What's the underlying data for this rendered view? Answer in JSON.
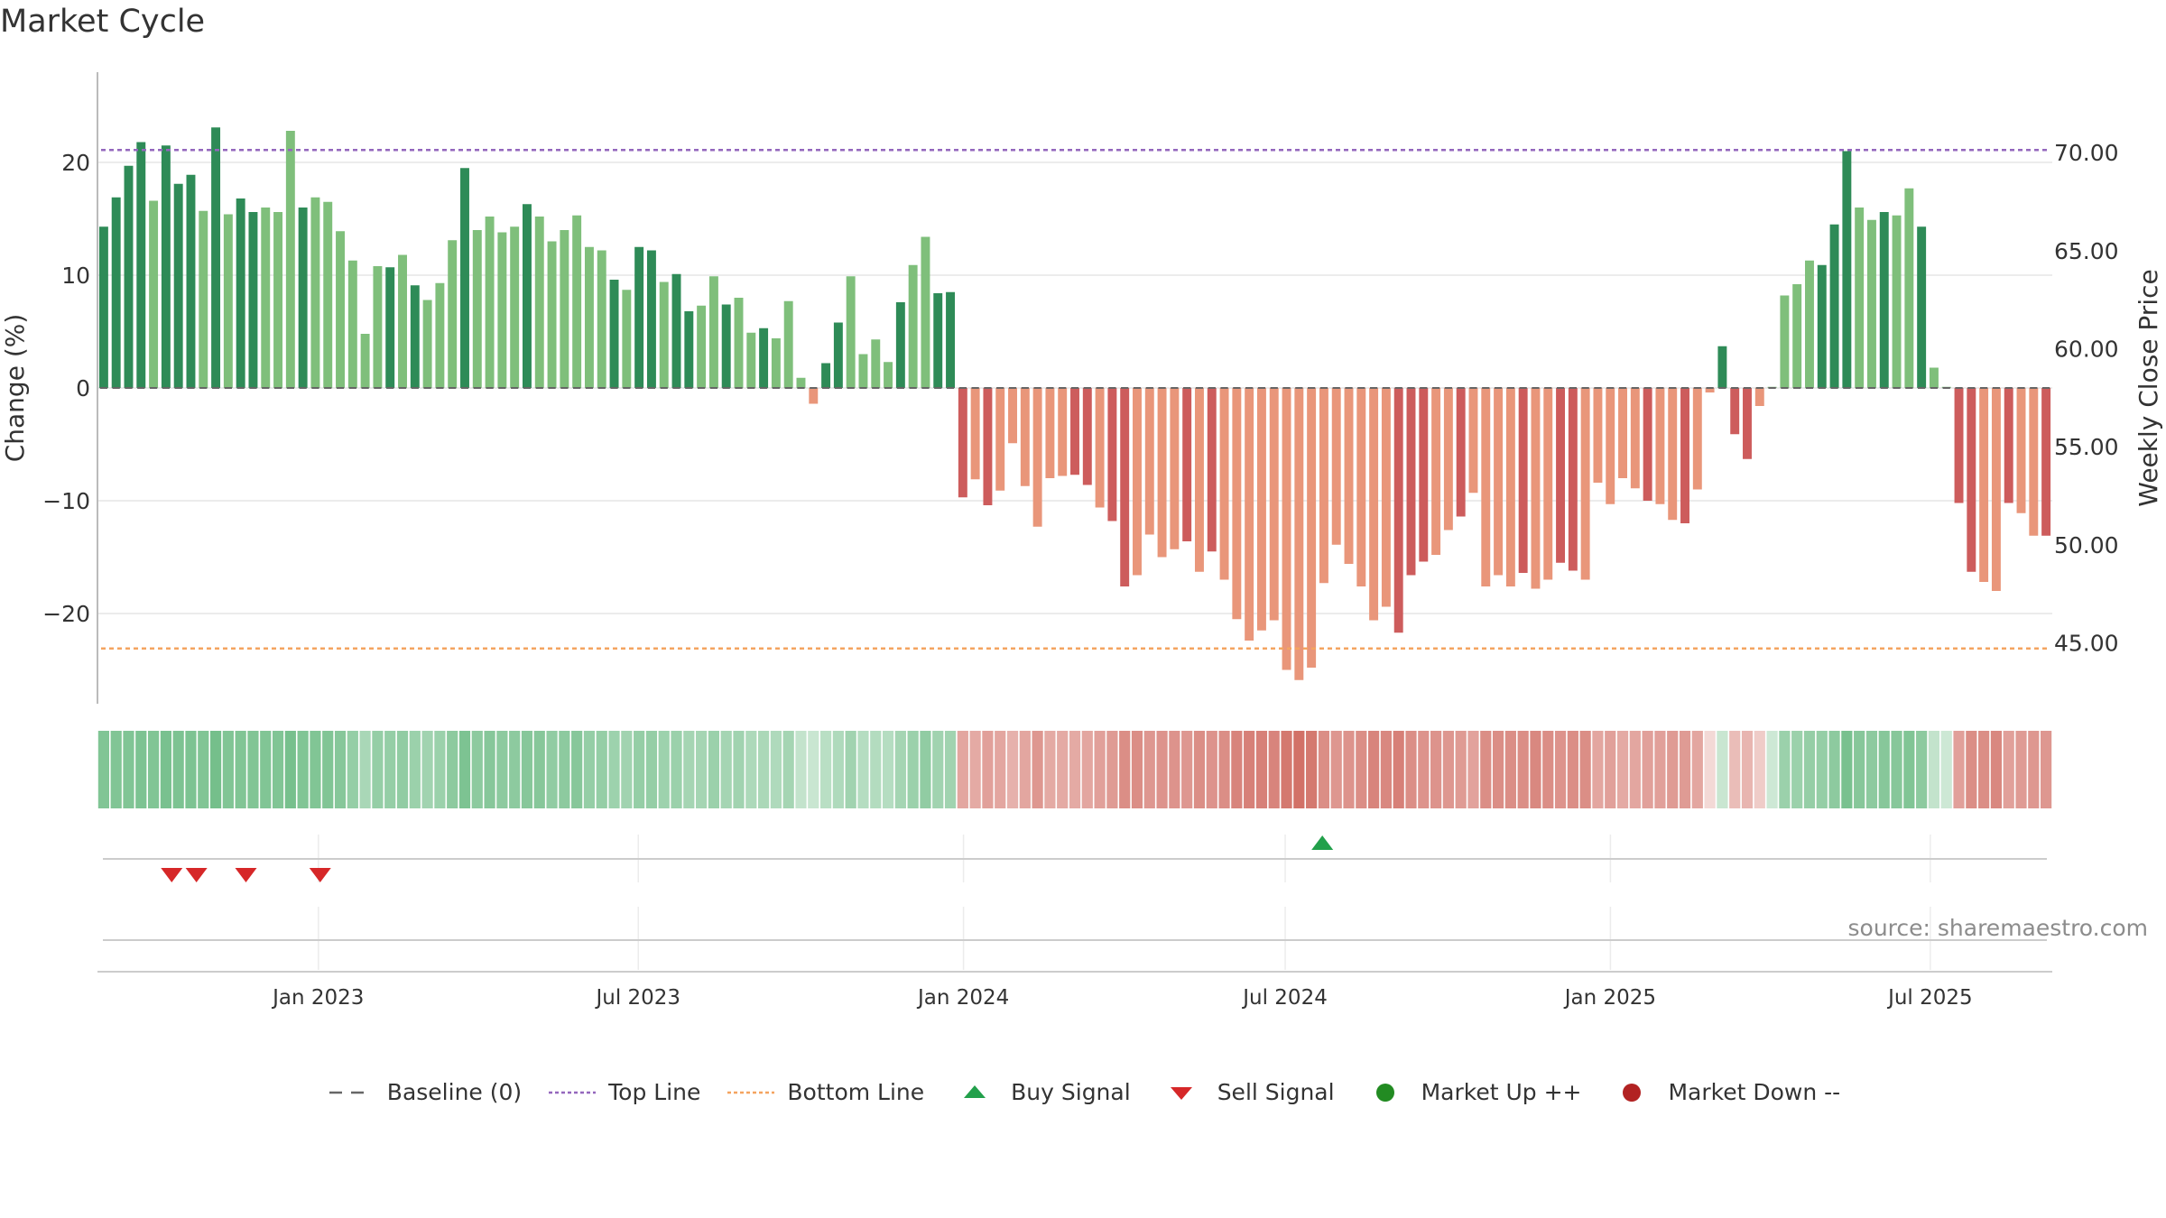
{
  "title": "Market Cycle",
  "source": "source: sharemaestro.com",
  "colors": {
    "dark_green": "#2e8b57",
    "light_green": "#7fbf7b",
    "dark_red": "#cd5c5c",
    "light_red": "#e9967a",
    "top_line": "#9467bd",
    "bottom_line": "#f4a460",
    "buy": "#22a04b",
    "sell": "#d62728",
    "market_up": "#228b22",
    "market_down": "#b22222",
    "baseline": "#666666"
  },
  "legend": [
    {
      "key": "baseline",
      "label": "Baseline (0)",
      "icon": "dash-line-icon"
    },
    {
      "key": "top",
      "label": "Top Line",
      "icon": "dotted-line-icon"
    },
    {
      "key": "bottom",
      "label": "Bottom Line",
      "icon": "dotted-line-icon"
    },
    {
      "key": "buy",
      "label": "Buy Signal",
      "icon": "triangle-up-icon"
    },
    {
      "key": "sell",
      "label": "Sell Signal",
      "icon": "triangle-down-icon"
    },
    {
      "key": "up",
      "label": "Market Up ++",
      "icon": "circle-icon"
    },
    {
      "key": "down",
      "label": "Market Down --",
      "icon": "circle-icon"
    }
  ],
  "chart_data": {
    "type": "bar",
    "title": "Market Cycle",
    "ylabel": "Change (%)",
    "y2label": "Weekly Close Price",
    "ylim": [
      -28,
      28
    ],
    "y2lim": [
      41.9,
      74.1
    ],
    "yticks": [
      20,
      10,
      0,
      -10,
      -20
    ],
    "ytick_labels": [
      "20",
      "10",
      "0",
      "−10",
      "−20"
    ],
    "y2ticks": [
      70,
      65,
      60,
      55,
      50,
      45
    ],
    "y2tick_labels": [
      "70.00",
      "65.00",
      "60.00",
      "55.00",
      "50.00",
      "45.00"
    ],
    "x_start": "2022-08-29",
    "x_end": "2025-09-08",
    "xticks": [
      "2023-01-01",
      "2023-07-01",
      "2024-01-01",
      "2024-07-01",
      "2025-01-01",
      "2025-07-01"
    ],
    "xtick_labels": [
      "Jan 2023",
      "Jul 2023",
      "Jan 2024",
      "Jul 2024",
      "Jan 2025",
      "Jul 2025"
    ],
    "top_line": 21.1,
    "bottom_line": -23.1,
    "grid": true,
    "legend_position": "bottom-center",
    "series": [
      {
        "values": [
          14.3,
          16.9,
          19.7,
          21.8,
          16.6,
          21.5,
          18.1,
          18.9,
          15.7,
          23.1,
          15.4,
          16.8,
          15.6,
          16.0,
          15.6,
          22.8,
          16.0,
          16.9,
          16.5,
          13.9,
          11.3,
          4.8,
          10.8,
          10.7,
          11.8,
          9.1,
          7.8,
          9.3,
          13.1,
          19.5,
          14.0,
          15.2,
          13.8,
          14.3,
          16.3,
          15.2,
          13.0,
          14.0,
          15.3,
          12.5,
          12.2,
          9.6,
          8.7,
          12.5,
          12.2,
          9.4,
          10.1,
          6.8,
          7.3,
          9.9,
          7.4,
          8.0,
          4.9,
          5.3,
          4.4,
          7.7,
          0.9,
          -1.4,
          2.2,
          5.8,
          9.9,
          3.0,
          4.3,
          2.3,
          7.6,
          10.9,
          13.4,
          8.4,
          8.5,
          -9.7,
          -8.1,
          -10.4,
          -9.1,
          -4.9,
          -8.7,
          -12.3,
          -8.0,
          -7.8,
          -7.7,
          -8.6,
          -10.6,
          -11.8,
          -17.6,
          -16.6,
          -13.0,
          -15.0,
          -14.3,
          -13.6,
          -16.3,
          -14.5,
          -17.0,
          -20.5,
          -22.4,
          -21.5,
          -20.6,
          -25.0,
          -25.9,
          -24.8,
          -17.3,
          -13.9,
          -15.6,
          -17.6,
          -20.6,
          -19.4,
          -21.7,
          -16.6,
          -15.4,
          -14.8,
          -12.6,
          -11.4,
          -9.3,
          -17.6,
          -16.6,
          -17.6,
          -16.4,
          -17.8,
          -17.0,
          -15.5,
          -16.2,
          -17.0,
          -8.4,
          -10.3,
          -8.0,
          -8.9,
          -10.0,
          -10.3,
          -11.7,
          -12.0,
          -9.0,
          -0.4,
          3.7,
          -4.1,
          -6.3,
          -1.6,
          0.1,
          8.2,
          9.2,
          11.3,
          10.9,
          14.5,
          21.0,
          16.0,
          14.9,
          15.6,
          15.3,
          17.7,
          14.3,
          1.8,
          0.1,
          -10.2,
          -16.3,
          -17.2,
          -18.0,
          -10.2,
          -11.1,
          -13.1,
          -13.1
        ],
        "shades": "ddddldddldlddllldlllllldldllldlllldlllllldlddlddlldlldllllddlllldlldddldllllllddlddlllldldlllllllllllllldddlldlllldllddllllldlldlldddllllldddlldlldllddlldlldlllddldddlldl"
      }
    ],
    "price_band": [
      0.58,
      0.58,
      0.58,
      0.6,
      0.58,
      0.62,
      0.6,
      0.6,
      0.58,
      0.64,
      0.58,
      0.58,
      0.58,
      0.58,
      0.58,
      0.63,
      0.58,
      0.58,
      0.58,
      0.55,
      0.48,
      0.38,
      0.48,
      0.48,
      0.5,
      0.45,
      0.42,
      0.45,
      0.52,
      0.6,
      0.52,
      0.55,
      0.52,
      0.52,
      0.55,
      0.55,
      0.5,
      0.52,
      0.55,
      0.48,
      0.48,
      0.44,
      0.42,
      0.48,
      0.48,
      0.44,
      0.45,
      0.4,
      0.4,
      0.45,
      0.4,
      0.42,
      0.36,
      0.37,
      0.35,
      0.4,
      0.25,
      0.22,
      0.3,
      0.35,
      0.42,
      0.32,
      0.33,
      0.32,
      0.4,
      0.45,
      0.5,
      0.42,
      0.42,
      -0.42,
      -0.4,
      -0.45,
      -0.42,
      -0.36,
      -0.42,
      -0.5,
      -0.4,
      -0.4,
      -0.4,
      -0.42,
      -0.45,
      -0.48,
      -0.55,
      -0.55,
      -0.5,
      -0.52,
      -0.52,
      -0.5,
      -0.55,
      -0.52,
      -0.55,
      -0.6,
      -0.62,
      -0.62,
      -0.6,
      -0.66,
      -0.7,
      -0.66,
      -0.55,
      -0.5,
      -0.52,
      -0.55,
      -0.6,
      -0.58,
      -0.62,
      -0.55,
      -0.52,
      -0.52,
      -0.5,
      -0.48,
      -0.44,
      -0.55,
      -0.55,
      -0.55,
      -0.55,
      -0.58,
      -0.55,
      -0.52,
      -0.55,
      -0.55,
      -0.42,
      -0.45,
      -0.4,
      -0.42,
      -0.45,
      -0.45,
      -0.48,
      -0.48,
      -0.42,
      -0.15,
      0.22,
      -0.3,
      -0.34,
      -0.22,
      0.2,
      0.45,
      0.45,
      0.48,
      0.48,
      0.52,
      0.62,
      0.55,
      0.52,
      0.55,
      0.55,
      0.58,
      0.52,
      0.25,
      0.2,
      -0.45,
      -0.55,
      -0.55,
      -0.58,
      -0.45,
      -0.48,
      -0.5,
      -0.5
    ],
    "buy_signals": [
      "2024-07-22"
    ],
    "sell_signals": [
      "2022-10-10",
      "2022-10-24",
      "2022-11-21",
      "2023-01-02"
    ],
    "annotations": [
      "source: sharemaestro.com"
    ]
  }
}
